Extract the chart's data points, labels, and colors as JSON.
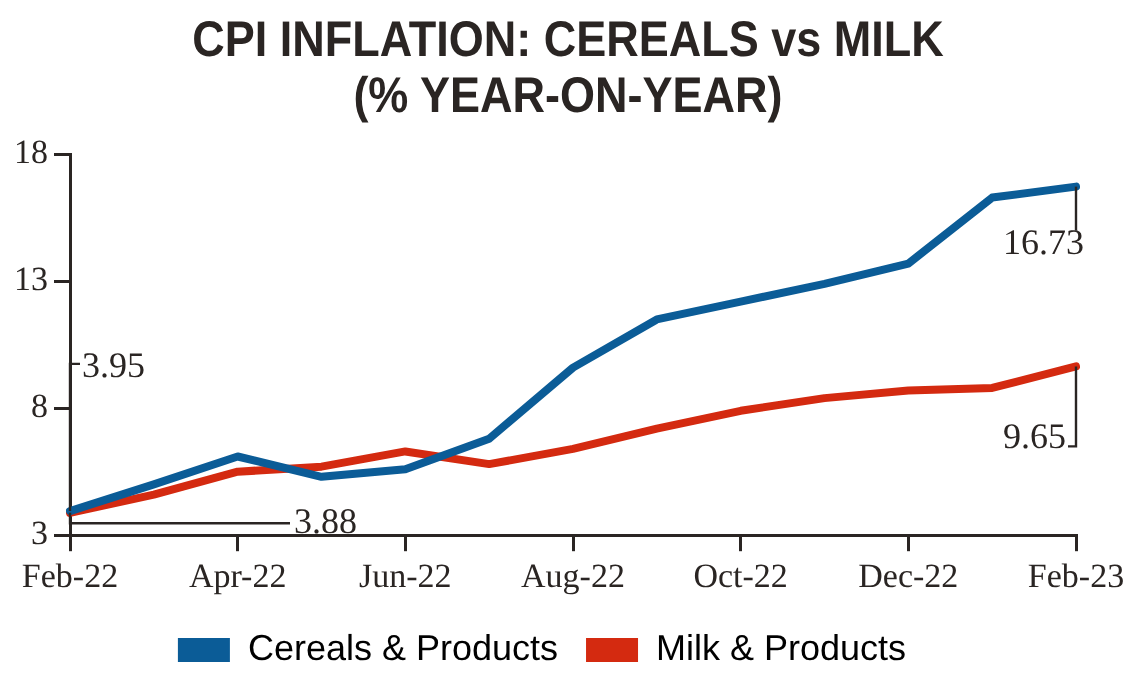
{
  "chart_data": {
    "type": "line",
    "title": "CPI INFLATION: CEREALS vs MILK\n(% YEAR-ON-YEAR)",
    "categories": [
      "Feb-22",
      null,
      "Apr-22",
      null,
      "Jun-22",
      null,
      "Aug-22",
      null,
      "Oct-22",
      null,
      "Dec-22",
      null,
      "Feb-23"
    ],
    "series": [
      {
        "name": "Cereals & Products",
        "color": "#0b5c97",
        "values": [
          3.95,
          5.0,
          6.1,
          5.3,
          5.6,
          6.8,
          9.6,
          11.5,
          12.2,
          12.9,
          13.7,
          16.3,
          16.73
        ]
      },
      {
        "name": "Milk & Products",
        "color": "#d42a10",
        "values": [
          3.88,
          4.6,
          5.5,
          5.7,
          6.3,
          5.8,
          6.4,
          7.2,
          7.9,
          8.4,
          8.7,
          8.8,
          9.65
        ]
      }
    ],
    "ylim": [
      3,
      18
    ],
    "yticks": [
      3,
      8,
      13,
      18
    ],
    "grid": false,
    "legend": "bottom",
    "marker": "none",
    "line_style": "solid",
    "annotations": [
      "3.95",
      {
        "text": "3.88",
        "x": "Feb-22",
        "y": 3.88
      },
      {
        "text": "16.73",
        "x": "Feb-23",
        "y": 16.73
      },
      {
        "text": "9.65",
        "x": "Feb-23",
        "y": 9.65
      }
    ]
  }
}
